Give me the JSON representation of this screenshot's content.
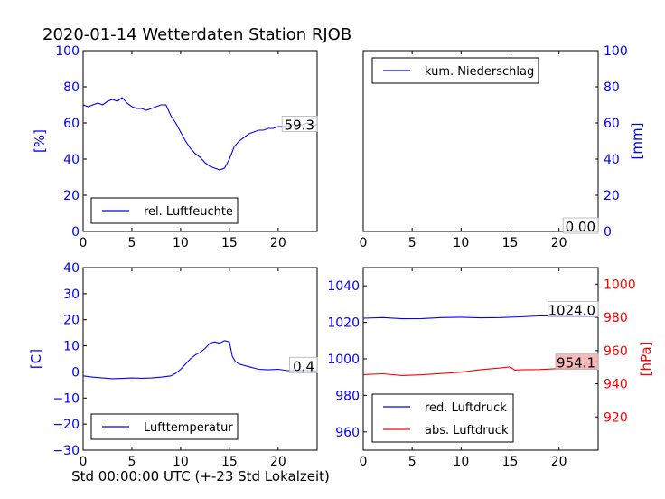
{
  "figure": {
    "title": "2020-01-14 Wetterdaten Station RJOB"
  },
  "chart_data": [
    {
      "id": "humidity",
      "type": "line",
      "ylabel": "[%]",
      "xlim": [
        0,
        24
      ],
      "ylim": [
        0,
        100
      ],
      "xticks": [
        "0",
        "5",
        "10",
        "15",
        "20"
      ],
      "yticks": [
        "0",
        "20",
        "40",
        "60",
        "80",
        "100"
      ],
      "legend": {
        "placement": "bottom-left",
        "entries": [
          {
            "label": "rel. Luftfeuchte",
            "color": "#0000ff"
          }
        ]
      },
      "annotation": {
        "text": "59.3",
        "color": "#000000"
      },
      "series": [
        {
          "name": "rel. Luftfeuchte",
          "color": "#0000ff",
          "x": [
            0,
            0.5,
            1,
            1.5,
            2,
            2.5,
            3,
            3.5,
            4,
            4.5,
            5,
            5.5,
            6,
            6.5,
            7,
            7.5,
            8,
            8.5,
            9,
            9.5,
            10,
            10.5,
            11,
            11.5,
            12,
            12.5,
            13,
            13.5,
            14,
            14.5,
            15,
            15.5,
            16,
            16.5,
            17,
            17.5,
            18,
            18.5,
            19,
            19.5,
            20,
            20.5,
            21,
            21.5,
            22,
            22.5,
            23,
            23.5,
            24
          ],
          "y": [
            70,
            69,
            70,
            71,
            70,
            72,
            73,
            72,
            74,
            71,
            69,
            68,
            68,
            67,
            68,
            69,
            70,
            70,
            64,
            60,
            55,
            50,
            46,
            43,
            41,
            38,
            36,
            35,
            34,
            35,
            40,
            47,
            50,
            52,
            54,
            55,
            56,
            56,
            57,
            57,
            58,
            58,
            58,
            59,
            59,
            59,
            60,
            58,
            59.3
          ]
        }
      ]
    },
    {
      "id": "precipitation",
      "type": "line",
      "ylabel": "[mm]",
      "xlim": [
        0,
        24
      ],
      "ylim": [
        0,
        100
      ],
      "xticks": [
        "0",
        "5",
        "10",
        "15",
        "20"
      ],
      "yticks": [
        "0",
        "20",
        "40",
        "60",
        "80",
        "100"
      ],
      "legend": {
        "placement": "top-left",
        "entries": [
          {
            "label": "kum. Niederschlag",
            "color": "#0000ff"
          }
        ]
      },
      "annotation": {
        "text": "0.00",
        "color": "#000000"
      },
      "series": [
        {
          "name": "kum. Niederschlag",
          "color": "#0000ff",
          "x": [
            0,
            24
          ],
          "y": [
            0,
            0
          ]
        }
      ]
    },
    {
      "id": "temperature",
      "type": "line",
      "ylabel": "[C]",
      "xlabel": "Std 00:00:00 UTC (+-23 Std Lokalzeit)",
      "xlim": [
        0,
        24
      ],
      "ylim": [
        -30,
        40
      ],
      "xticks": [
        "0",
        "5",
        "10",
        "15",
        "20"
      ],
      "yticks": [
        "−30",
        "−20",
        "−10",
        "0",
        "10",
        "20",
        "30",
        "40"
      ],
      "legend": {
        "placement": "bottom-left",
        "entries": [
          {
            "label": "Lufttemperatur",
            "color": "#0000ff"
          }
        ]
      },
      "annotation": {
        "text": "0.4",
        "color": "#000000"
      },
      "series": [
        {
          "name": "Lufttemperatur",
          "color": "#0000ff",
          "x": [
            0,
            1,
            2,
            3,
            4,
            5,
            6,
            7,
            8,
            9,
            9.5,
            10,
            10.5,
            11,
            11.5,
            12,
            12.5,
            13,
            13.5,
            14,
            14.5,
            15,
            15.3,
            15.6,
            16,
            17,
            18,
            19,
            20,
            21,
            22,
            23,
            24
          ],
          "y": [
            -1.5,
            -2,
            -2.3,
            -2.6,
            -2.5,
            -2.3,
            -2.4,
            -2.3,
            -2,
            -1.5,
            -0.5,
            1,
            3,
            5,
            6.5,
            7.5,
            9,
            11,
            11.5,
            11,
            12,
            11.5,
            6,
            4,
            3,
            2,
            1,
            0.8,
            1,
            0.5,
            0.6,
            0.5,
            0.4
          ]
        }
      ]
    },
    {
      "id": "pressure",
      "type": "line",
      "ylabel": "[hPa]",
      "xlim": [
        0,
        24
      ],
      "ylim_left": [
        950,
        1050
      ],
      "ylim_right": [
        900,
        1010
      ],
      "xticks": [
        "0",
        "5",
        "10",
        "15",
        "20"
      ],
      "yticks_left": [
        "960",
        "980",
        "1000",
        "1020",
        "1040"
      ],
      "yticks_right": [
        "920",
        "940",
        "960",
        "980",
        "1000"
      ],
      "legend": {
        "placement": "bottom-left",
        "entries": [
          {
            "label": "red. Luftdruck",
            "color": "#0000ff"
          },
          {
            "label": "abs. Luftdruck",
            "color": "#ff0000"
          }
        ]
      },
      "annotations": [
        {
          "text": "1024.0",
          "color": "#000000",
          "box": "#ffffff"
        },
        {
          "text": "954.1",
          "color": "#000000",
          "box": "#f4b3b3"
        }
      ],
      "series": [
        {
          "name": "red. Luftdruck",
          "color": "#0000ff",
          "axis": "left",
          "x": [
            0,
            2,
            4,
            6,
            8,
            10,
            12,
            14,
            16,
            18,
            20,
            22,
            24
          ],
          "y": [
            1022.3,
            1022.6,
            1022,
            1022.1,
            1022.6,
            1022.8,
            1022.5,
            1022.6,
            1023,
            1023.5,
            1023.6,
            1023.8,
            1024
          ]
        },
        {
          "name": "abs. Luftdruck",
          "color": "#ff0000",
          "axis": "right",
          "x": [
            0,
            2,
            4,
            6,
            8,
            10,
            12,
            14,
            15,
            15.5,
            16,
            18,
            20,
            22,
            24
          ],
          "y": [
            945.5,
            946,
            945,
            945.4,
            946.2,
            947,
            948.5,
            949.5,
            950.2,
            948.2,
            948.4,
            948.6,
            949.2,
            949.5,
            954.1
          ]
        }
      ]
    }
  ]
}
